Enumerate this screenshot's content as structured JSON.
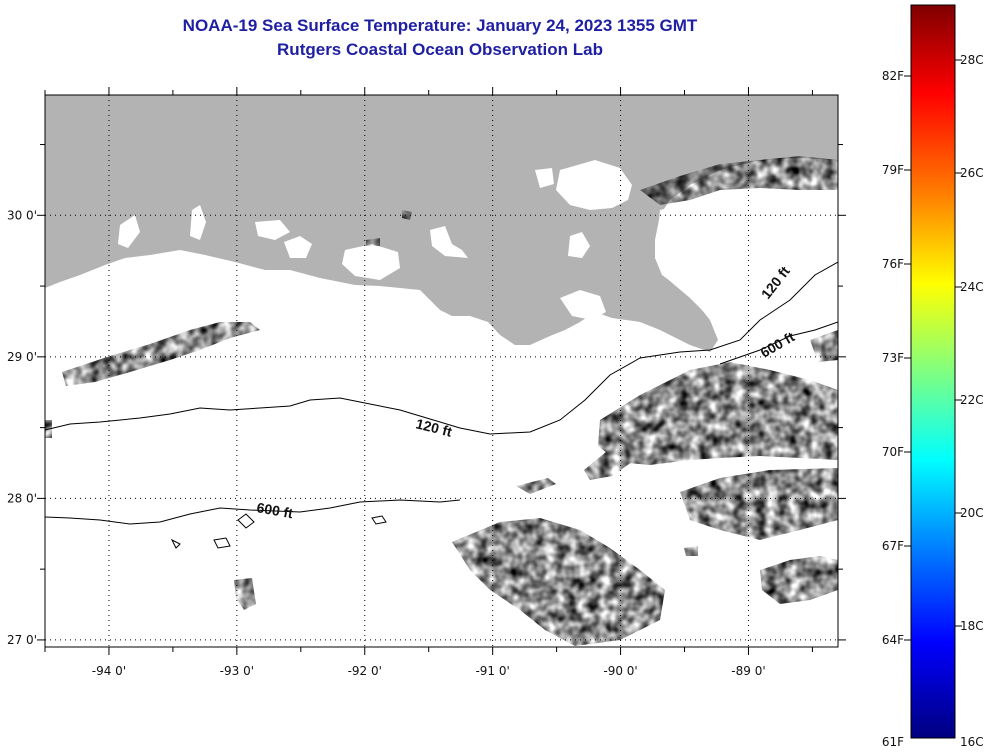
{
  "header": {
    "title_line1": "NOAA-19 Sea Surface Temperature:  January 24, 2023 1355 GMT",
    "title_line2": "Rutgers Coastal Ocean Observation Lab"
  },
  "map": {
    "type": "sea-surface-temperature-map",
    "lon_range": [
      -94.5,
      -88.3
    ],
    "lat_range": [
      26.95,
      30.85
    ],
    "lon_ticks": [
      "-94 0'",
      "-93 0'",
      "-92 0'",
      "-91 0'",
      "-90 0'",
      "-89 0'"
    ],
    "lat_ticks": [
      "30 0'",
      "29 0'",
      "28 0'",
      "27 0'"
    ],
    "grid": true,
    "land_color": "#b3b3b3",
    "contour_labels": [
      "120 ft",
      "600 ft",
      "120 ft",
      "600 ft"
    ]
  },
  "colorbar": {
    "f_labels": [
      "82F",
      "79F",
      "76F",
      "73F",
      "70F",
      "67F",
      "64F",
      "61F"
    ],
    "c_labels": [
      "28C",
      "26C",
      "24C",
      "22C",
      "20C",
      "18C",
      "16C"
    ],
    "colors": [
      "#7f0000",
      "#ff0000",
      "#ff8000",
      "#ffff00",
      "#80ff80",
      "#00ffff",
      "#0080ff",
      "#0000ff",
      "#00007f"
    ]
  }
}
